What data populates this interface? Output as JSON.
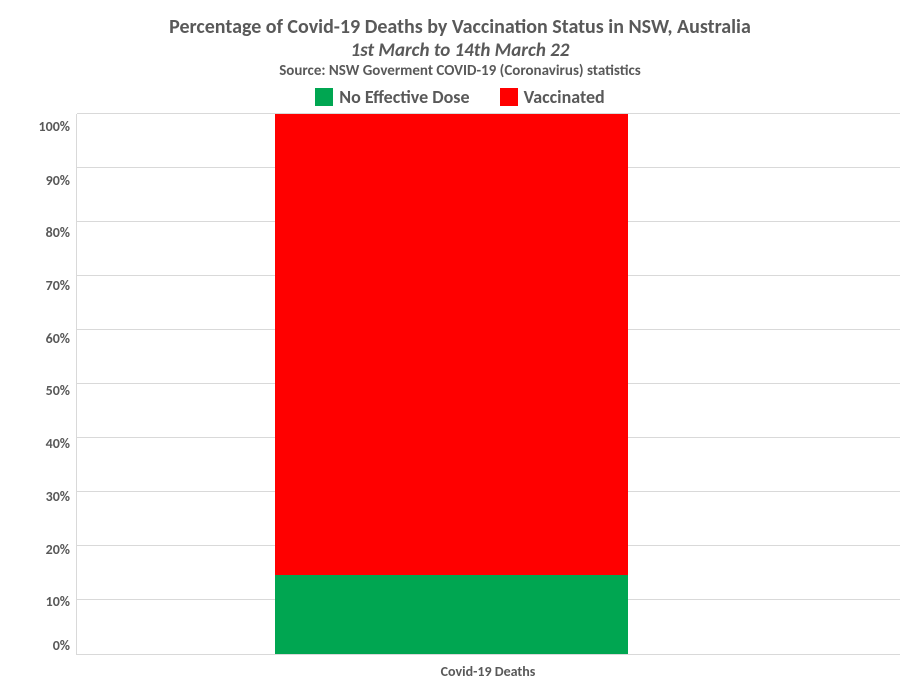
{
  "chart": {
    "type": "stacked-bar-100pct",
    "title_main": "Percentage of Covid-19 Deaths by Vaccination Status in NSW, Australia",
    "title_sub": "1st March to 14th March 22",
    "title_source": "Source: NSW Goverment COVID-19 (Coronavirus) statistics",
    "title_main_fontsize": 20,
    "title_sub_fontsize": 19,
    "title_source_fontsize": 15,
    "title_color": "#595959",
    "background_color": "#ffffff",
    "legend": {
      "fontsize": 18,
      "text_color": "#595959",
      "items": [
        {
          "label": "No Effective Dose",
          "color": "#00a651"
        },
        {
          "label": "Vaccinated",
          "color": "#ff0000"
        }
      ]
    },
    "y_axis": {
      "min": 0,
      "max": 100,
      "tick_step": 10,
      "tick_labels": [
        "100%",
        "90%",
        "80%",
        "70%",
        "60%",
        "50%",
        "40%",
        "30%",
        "20%",
        "10%",
        "0%"
      ],
      "label_fontsize": 14,
      "label_color": "#595959",
      "axis_line_color": "#d9d9d9",
      "grid_color": "#d9d9d9"
    },
    "x_axis": {
      "label": "Covid-19 Deaths",
      "label_fontsize": 14,
      "label_color": "#595959"
    },
    "bar": {
      "left_pct": 24,
      "width_pct": 43,
      "segments": [
        {
          "key": "vaccinated",
          "label": "Vaccinated",
          "value_pct": 85.3,
          "color": "#ff0000"
        },
        {
          "key": "no_effective_dose",
          "label": "No Effective Dose",
          "value_pct": 14.7,
          "color": "#00a651"
        }
      ]
    }
  }
}
